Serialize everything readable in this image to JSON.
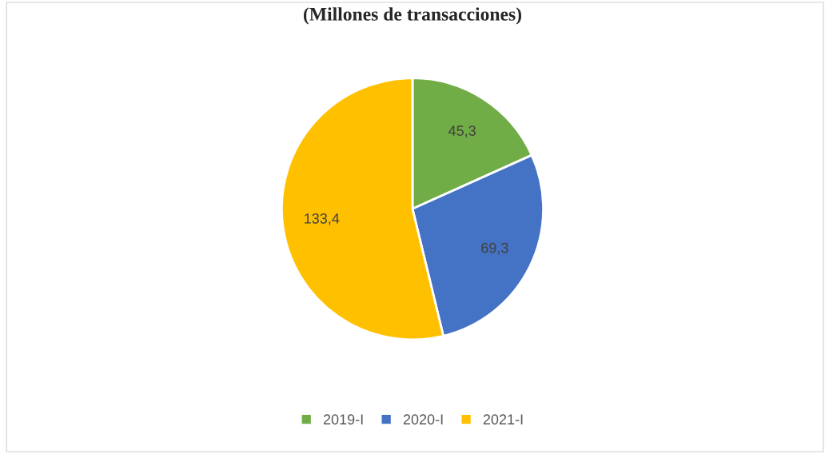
{
  "chart_data": {
    "type": "pie",
    "title": "(Millones de transacciones)",
    "categories": [
      "2019-I",
      "2020-I",
      "2021-I"
    ],
    "values": [
      45.3,
      69.3,
      133.4
    ],
    "colors": [
      "#70ad47",
      "#4472c4",
      "#ffc000"
    ],
    "value_labels": [
      "45,3",
      "69,3",
      "133,4"
    ],
    "legend": "bottom"
  }
}
